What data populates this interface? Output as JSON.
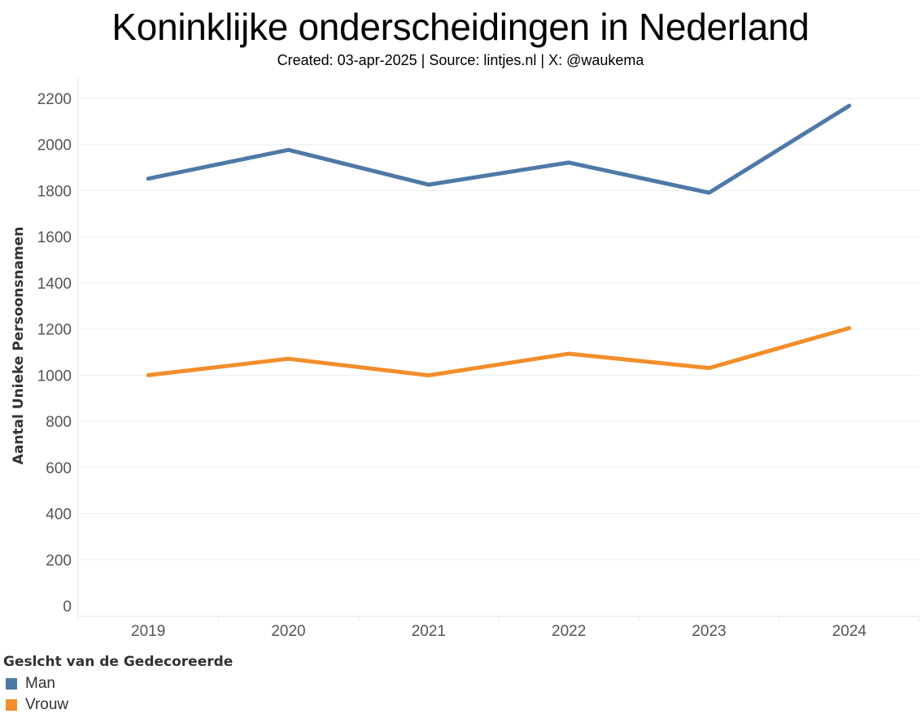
{
  "chart_data": {
    "type": "line",
    "title": "Koninklijke onderscheidingen in Nederland",
    "subtitle": "Created: 03-apr-2025 | Source: lintjes.nl | X: @waukema",
    "xlabel": "",
    "ylabel": "Aantal Unieke Persoonsnamen",
    "categories": [
      "2019",
      "2020",
      "2021",
      "2022",
      "2023",
      "2024"
    ],
    "ylim": [
      0,
      2200
    ],
    "yticks": [
      0,
      200,
      400,
      600,
      800,
      1000,
      1200,
      1400,
      1600,
      1800,
      2000,
      2200
    ],
    "grid": true,
    "legend_title": "Geslcht van de Gedecoreerde",
    "legend_position": "bottom-left",
    "series": [
      {
        "name": "Man",
        "color": "#4e79a7",
        "values": [
          1852,
          1977,
          1826,
          1922,
          1791,
          2168
        ]
      },
      {
        "name": "Vrouw",
        "color": "#f28e2b",
        "values": [
          1000,
          1071,
          999,
          1093,
          1031,
          1204
        ]
      }
    ]
  }
}
